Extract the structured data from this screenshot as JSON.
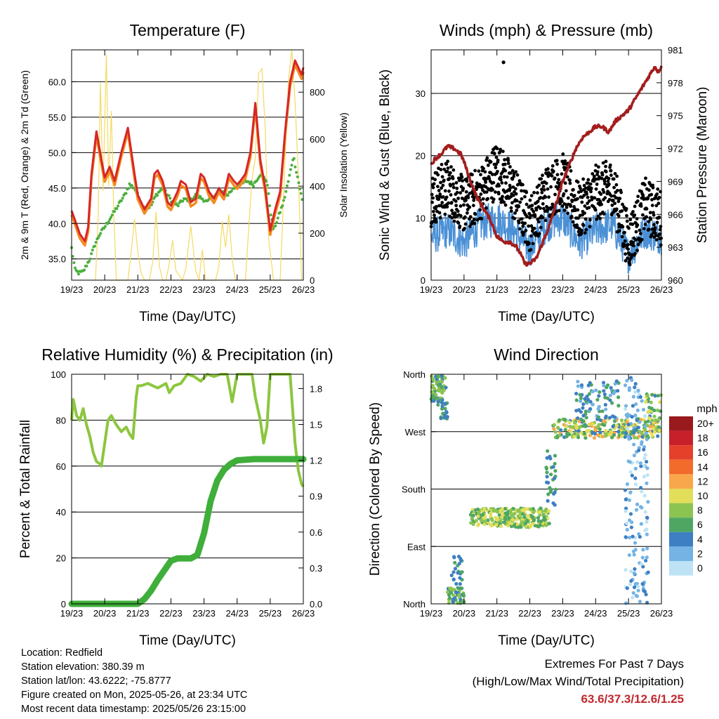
{
  "colors": {
    "t2m": "#d62728",
    "t9m": "#f58a1f",
    "td": "#4caf3e",
    "solar": "#f4da62",
    "wind": "#4a90d6",
    "gust": "#000000",
    "pressure": "#a31d1d",
    "rh": "#8cc63f",
    "precip": "#3fae3a"
  },
  "chart_data": [
    {
      "id": "temperature",
      "type": "line",
      "title": "Temperature (F)",
      "xlabel": "Time (Day/UTC)",
      "ylabel": "2m & 9m T (Red, Orange) & 2m Td (Green)",
      "ylabel_right": "Solar Insolation (Yellow)",
      "x_ticks": [
        "19/23",
        "20/23",
        "21/23",
        "22/23",
        "23/23",
        "24/23",
        "25/23",
        "26/23"
      ],
      "y_ticks": [
        "35.0",
        "40.0",
        "45.0",
        "50.0",
        "55.0",
        "60.0"
      ],
      "y_ticks_right": [
        "0",
        "200",
        "400",
        "600",
        "800"
      ],
      "ylim": [
        32,
        64.5
      ],
      "ylim_right": [
        0,
        980
      ],
      "grid": true,
      "series": [
        {
          "key": "t2m",
          "x": [
            0,
            0.1,
            0.25,
            0.4,
            0.5,
            0.6,
            0.75,
            0.9,
            1.0,
            1.15,
            1.3,
            1.5,
            1.7,
            1.9,
            2.0,
            2.2,
            2.4,
            2.5,
            2.6,
            2.75,
            2.9,
            3.0,
            3.2,
            3.3,
            3.45,
            3.6,
            3.75,
            3.9,
            4.0,
            4.15,
            4.3,
            4.45,
            4.6,
            4.75,
            4.9,
            5.0,
            5.1,
            5.25,
            5.4,
            5.55,
            5.7,
            5.85,
            6.0,
            6.15,
            6.3,
            6.45,
            6.6,
            6.75,
            6.85,
            6.95,
            7.0
          ],
          "y": [
            41.8,
            40.5,
            38.5,
            37.5,
            39.5,
            47.0,
            53.0,
            49.0,
            46.5,
            48.0,
            46.0,
            50.0,
            53.5,
            47.0,
            44.0,
            42.0,
            43.5,
            47.0,
            47.5,
            46.0,
            43.0,
            42.5,
            44.5,
            46.0,
            45.5,
            43.0,
            43.5,
            47.0,
            46.5,
            44.5,
            43.5,
            45.0,
            44.0,
            47.0,
            46.0,
            45.5,
            46.0,
            47.0,
            50.0,
            57.0,
            49.0,
            45.0,
            39.0,
            42.0,
            44.5,
            53.0,
            60.0,
            63.0,
            62.0,
            61.0,
            62.0
          ]
        },
        {
          "key": "td",
          "x": [
            0,
            0.1,
            0.2,
            0.35,
            0.55,
            0.7,
            0.85,
            1.0,
            1.2,
            1.4,
            1.6,
            1.75,
            1.9,
            2.0,
            2.2,
            2.4,
            2.55,
            2.75,
            2.9,
            3.05,
            3.2,
            3.4,
            3.55,
            3.75,
            3.95,
            4.1,
            4.3,
            4.5,
            4.7,
            4.9,
            5.1,
            5.3,
            5.5,
            5.7,
            5.9,
            6.0,
            6.1,
            6.25,
            6.4,
            6.55,
            6.7,
            6.85,
            7.0
          ],
          "y": [
            36.5,
            33.5,
            33.0,
            33.2,
            35.0,
            37.0,
            38.5,
            39.5,
            41.0,
            42.5,
            44.0,
            45.5,
            45.0,
            44.0,
            42.0,
            42.5,
            44.0,
            45.0,
            44.0,
            43.0,
            42.5,
            43.5,
            43.0,
            44.0,
            43.5,
            43.0,
            44.0,
            44.5,
            44.0,
            45.0,
            45.5,
            46.0,
            45.5,
            47.0,
            46.0,
            42.0,
            39.0,
            41.0,
            43.0,
            46.0,
            49.5,
            46.0,
            42.5
          ]
        },
        {
          "key": "solar",
          "x": [
            0.72,
            0.8,
            0.87,
            0.95,
            1.05,
            1.12,
            1.2,
            1.27,
            1.35,
            1.7,
            1.8,
            1.9,
            2.0,
            2.1,
            2.2,
            2.35,
            2.45,
            2.55,
            2.65,
            2.75,
            2.85,
            2.95,
            3.05,
            3.15,
            3.35,
            3.45,
            3.6,
            3.75,
            3.85,
            3.95,
            4.05,
            4.35,
            4.45,
            4.55,
            4.65,
            4.75,
            4.85,
            4.95,
            5.05,
            5.25,
            5.35,
            5.45,
            5.55,
            5.65,
            5.75,
            5.85,
            5.95,
            6.1,
            6.3,
            6.45,
            6.55,
            6.65,
            6.75,
            6.85,
            6.95
          ],
          "y": [
            0,
            250,
            840,
            380,
            960,
            400,
            720,
            300,
            0,
            0,
            120,
            260,
            120,
            30,
            0,
            0,
            80,
            290,
            60,
            0,
            0,
            70,
            170,
            40,
            0,
            50,
            230,
            40,
            0,
            130,
            0,
            0,
            60,
            250,
            140,
            280,
            90,
            0,
            0,
            0,
            220,
            430,
            520,
            880,
            900,
            640,
            180,
            0,
            0,
            520,
            850,
            980,
            760,
            450,
            0
          ]
        }
      ]
    },
    {
      "id": "winds",
      "type": "scatter",
      "title": "Winds (mph) & Pressure (mb)",
      "xlabel": "Time (Day/UTC)",
      "ylabel": "Sonic Wind & Gust (Blue, Black)",
      "ylabel_right": "Station Pressure (Maroon)",
      "x_ticks": [
        "19/23",
        "20/23",
        "21/23",
        "22/23",
        "23/23",
        "24/23",
        "25/23",
        "26/23"
      ],
      "y_ticks": [
        "0",
        "10",
        "20",
        "30"
      ],
      "y_ticks_right": [
        "960",
        "963",
        "966",
        "969",
        "972",
        "975",
        "978",
        "981"
      ],
      "ylim": [
        0,
        37
      ],
      "ylim_right": [
        960,
        981
      ],
      "grid": true,
      "series": [
        {
          "key": "pressure",
          "x": [
            0,
            0.1,
            0.3,
            0.5,
            0.7,
            0.9,
            1.0,
            1.2,
            1.4,
            1.6,
            1.8,
            2.0,
            2.2,
            2.4,
            2.6,
            2.7,
            2.85,
            3.0,
            3.2,
            3.4,
            3.6,
            3.8,
            4.0,
            4.2,
            4.4,
            4.6,
            4.8,
            5.0,
            5.2,
            5.4,
            5.6,
            5.8,
            6.0,
            6.2,
            6.4,
            6.6,
            6.8,
            6.9,
            7.0
          ],
          "y": [
            970.5,
            971.0,
            971.5,
            972.2,
            972.0,
            971.5,
            970.8,
            969.0,
            967.5,
            966.5,
            965.5,
            964.0,
            963.5,
            963.5,
            963.0,
            962.5,
            961.5,
            961.5,
            962.0,
            963.5,
            965.0,
            967.0,
            969.0,
            970.5,
            972.0,
            973.0,
            973.5,
            974.0,
            974.0,
            973.5,
            974.5,
            975.0,
            975.5,
            976.5,
            977.5,
            978.5,
            979.5,
            979.0,
            979.5
          ]
        },
        {
          "key": "wind_base",
          "x": [
            0,
            0.5,
            1.0,
            1.5,
            2.0,
            2.5,
            3.0,
            3.5,
            4.0,
            4.5,
            5.0,
            5.5,
            6.0,
            6.5,
            7.0
          ],
          "y": [
            7,
            8,
            6,
            9,
            10,
            8,
            5,
            9,
            10,
            6,
            8,
            9,
            4,
            8,
            7
          ]
        },
        {
          "key": "gust_base",
          "x": [
            0,
            0.5,
            1.0,
            1.5,
            2.0,
            2.5,
            3.0,
            3.5,
            4.0,
            4.5,
            5.0,
            5.5,
            6.0,
            6.5,
            7.0
          ],
          "y": [
            13,
            15,
            12,
            14,
            18,
            14,
            9,
            14,
            16,
            11,
            14,
            15,
            6,
            12,
            10
          ]
        }
      ],
      "gust_max": 35
    },
    {
      "id": "rh_precip",
      "type": "line",
      "title": "Relative Humidity (%) & Precipitation (in)",
      "xlabel": "Time (Day/UTC)",
      "ylabel": "Percent & Total Rainfall",
      "x_ticks": [
        "19/23",
        "20/23",
        "21/23",
        "22/23",
        "23/23",
        "24/23",
        "25/23",
        "26/23"
      ],
      "y_ticks": [
        "0",
        "20",
        "40",
        "60",
        "80",
        "100"
      ],
      "y_ticks_right": [
        "0.0",
        "0.3",
        "0.6",
        "0.9",
        "1.2",
        "1.5",
        "1.8"
      ],
      "ylim": [
        0,
        100
      ],
      "ylim_right": [
        0,
        1.92
      ],
      "grid": true,
      "series": [
        {
          "key": "rh",
          "x": [
            0,
            0.05,
            0.15,
            0.25,
            0.35,
            0.45,
            0.55,
            0.65,
            0.75,
            0.85,
            0.9,
            1.0,
            1.1,
            1.2,
            1.35,
            1.5,
            1.65,
            1.75,
            1.85,
            1.95,
            2.0,
            2.1,
            2.3,
            2.6,
            2.85,
            2.95,
            3.1,
            3.3,
            3.5,
            3.7,
            3.9,
            4.1,
            4.3,
            4.5,
            4.7,
            4.85,
            5.0,
            5.2,
            5.45,
            5.55,
            5.7,
            5.8,
            5.9,
            6.0,
            6.3,
            6.6,
            6.75,
            6.85,
            6.95,
            7.0
          ],
          "y": [
            80,
            89,
            82,
            80,
            85,
            78,
            73,
            66,
            62,
            61,
            60,
            70,
            80,
            82,
            78,
            75,
            77,
            74,
            72,
            90,
            95,
            95,
            96,
            94,
            96,
            92,
            95,
            96,
            100,
            99,
            97,
            100,
            99,
            100,
            100,
            88,
            100,
            100,
            100,
            90,
            80,
            70,
            77,
            100,
            100,
            100,
            70,
            58,
            52,
            51
          ]
        },
        {
          "key": "precip",
          "x": [
            0,
            0.5,
            1.0,
            1.5,
            2.0,
            2.2,
            2.4,
            2.6,
            2.8,
            3.0,
            3.2,
            3.4,
            3.6,
            3.8,
            4.0,
            4.2,
            4.4,
            4.6,
            4.8,
            5.0,
            5.5,
            6.0,
            6.5,
            7.0
          ],
          "y": [
            0,
            0,
            0,
            0,
            0,
            0.04,
            0.11,
            0.2,
            0.28,
            0.36,
            0.38,
            0.38,
            0.38,
            0.41,
            0.59,
            0.86,
            1.03,
            1.12,
            1.17,
            1.2,
            1.21,
            1.21,
            1.21,
            1.21
          ]
        }
      ]
    },
    {
      "id": "wind_direction",
      "type": "scatter",
      "title": "Wind Direction",
      "xlabel": "Time (Day/UTC)",
      "ylabel": "Direction (Colored By Speed)",
      "x_ticks": [
        "19/23",
        "20/23",
        "21/23",
        "22/23",
        "23/23",
        "24/23",
        "25/23",
        "26/23"
      ],
      "y_ticks": [
        "North",
        "East",
        "South",
        "West",
        "North"
      ],
      "ylim": [
        0,
        360
      ],
      "grid": true,
      "legend": {
        "title": "mph",
        "labels": [
          "20+",
          "18",
          "16",
          "14",
          "12",
          "10",
          "8",
          "6",
          "4",
          "2",
          "0"
        ],
        "colors": [
          "#99191c",
          "#c8202a",
          "#e4402a",
          "#f26b2b",
          "#f9a74c",
          "#e3de5a",
          "#8cc452",
          "#4fa663",
          "#3d7fc2",
          "#74b3e4",
          "#bde3f5"
        ],
        "position": "right"
      },
      "clusters": [
        {
          "x0": 0.0,
          "x1": 0.45,
          "y0": 318,
          "y1": 358,
          "s0": 4,
          "s1": 9,
          "n": 60
        },
        {
          "x0": 0.2,
          "x1": 0.5,
          "y0": 290,
          "y1": 320,
          "s0": 3,
          "s1": 7,
          "n": 25
        },
        {
          "x0": 0.5,
          "x1": 1.0,
          "y0": 0,
          "y1": 25,
          "s0": 4,
          "s1": 9,
          "n": 45
        },
        {
          "x0": 0.6,
          "x1": 0.95,
          "y0": 25,
          "y1": 75,
          "s0": 3,
          "s1": 6,
          "n": 25
        },
        {
          "x0": 1.2,
          "x1": 3.6,
          "y0": 120,
          "y1": 150,
          "s0": 5,
          "s1": 11,
          "n": 260
        },
        {
          "x0": 3.5,
          "x1": 3.8,
          "y0": 150,
          "y1": 245,
          "s0": 3,
          "s1": 7,
          "n": 30
        },
        {
          "x0": 3.7,
          "x1": 6.9,
          "y0": 260,
          "y1": 290,
          "s0": 4,
          "s1": 12,
          "n": 240
        },
        {
          "x0": 4.4,
          "x1": 5.7,
          "y0": 290,
          "y1": 350,
          "s0": 2,
          "s1": 7,
          "n": 80
        },
        {
          "x0": 5.9,
          "x1": 6.6,
          "y0": 0,
          "y1": 360,
          "s0": 0,
          "s1": 4,
          "n": 160
        },
        {
          "x0": 6.5,
          "x1": 7.0,
          "y0": 270,
          "y1": 330,
          "s0": 4,
          "s1": 10,
          "n": 40
        }
      ]
    }
  ],
  "info": {
    "location": "Location: Redfield",
    "elevation": "Station elevation: 380.39 m",
    "latlon": "Station lat/lon: 43.6222; -75.8777",
    "created": "Figure created on Mon, 2025-05-26, at 23:34 UTC",
    "recent": "Most recent data timestamp: 2025/05/26 23:15:00"
  },
  "extremes": {
    "line1": "Extremes For Past 7 Days",
    "line2": "(High/Low/Max Wind/Total Precipitation)",
    "values": "63.6/37.3/12.6/1.25"
  }
}
